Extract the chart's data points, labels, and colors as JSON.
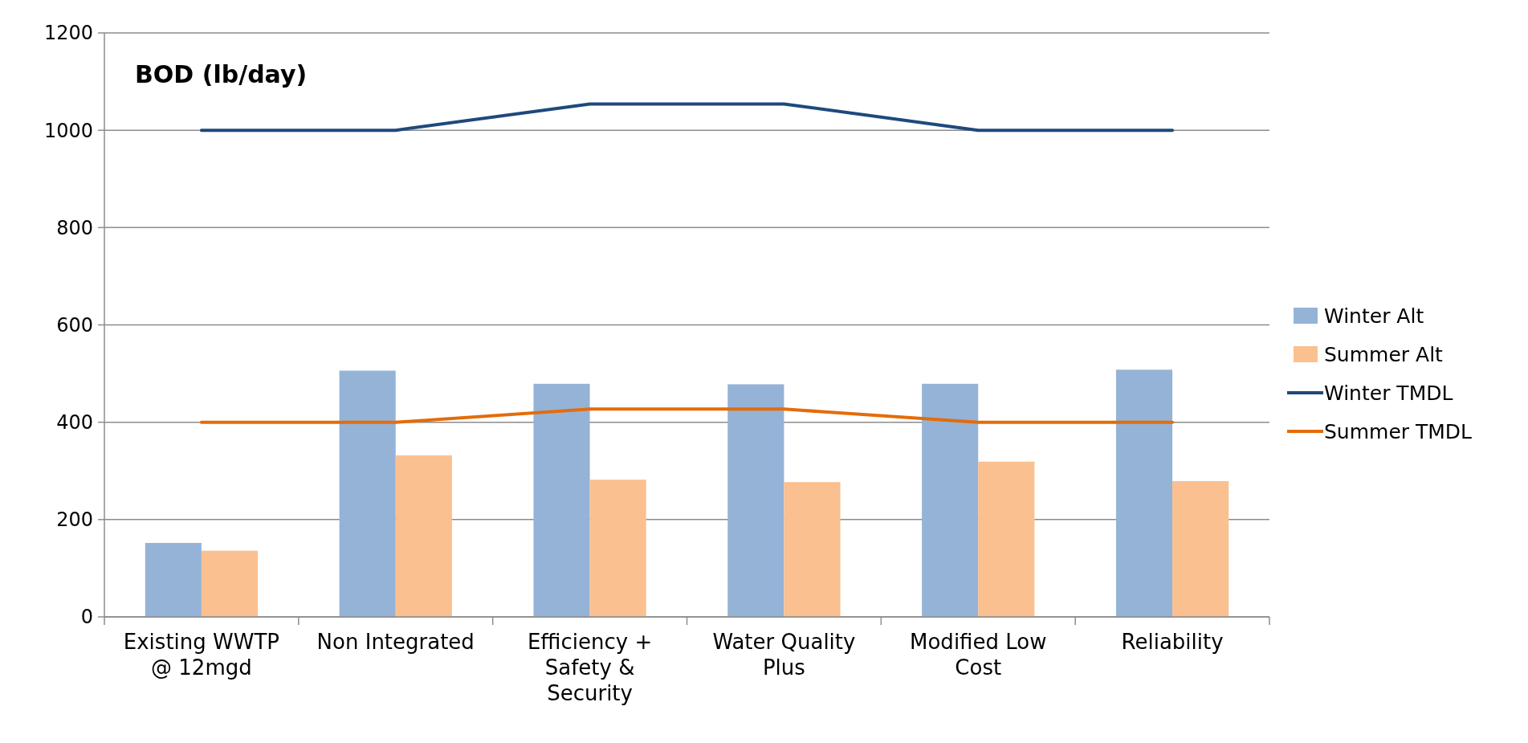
{
  "chart_data": {
    "type": "bar",
    "title": "BOD (lb/day)",
    "categories": [
      "Existing WWTP @ 12mgd",
      "Non Integrated",
      "Efficiency + Safety & Security",
      "Water Quality Plus",
      "Modified Low Cost",
      "Reliability"
    ],
    "series": [
      {
        "name": "Winter Alt",
        "color": "#95b3d7",
        "values": [
          152,
          506,
          479,
          478,
          479,
          508
        ]
      },
      {
        "name": "Summer Alt",
        "color": "#fac090",
        "values": [
          136,
          332,
          282,
          277,
          319,
          279
        ]
      },
      {
        "name": "Winter TMDL",
        "type": "line",
        "color": "#1f497d",
        "values": [
          1000,
          1000,
          1054,
          1054,
          1000,
          1000
        ]
      },
      {
        "name": "Summer TMDL",
        "type": "line",
        "color": "#e46c0a",
        "values": [
          400,
          400,
          427,
          427,
          400,
          400
        ]
      }
    ],
    "ylim": [
      0,
      1200
    ],
    "yticks": [
      0,
      200,
      400,
      600,
      800,
      1000,
      1200
    ],
    "grid": "y",
    "legend": "right"
  }
}
